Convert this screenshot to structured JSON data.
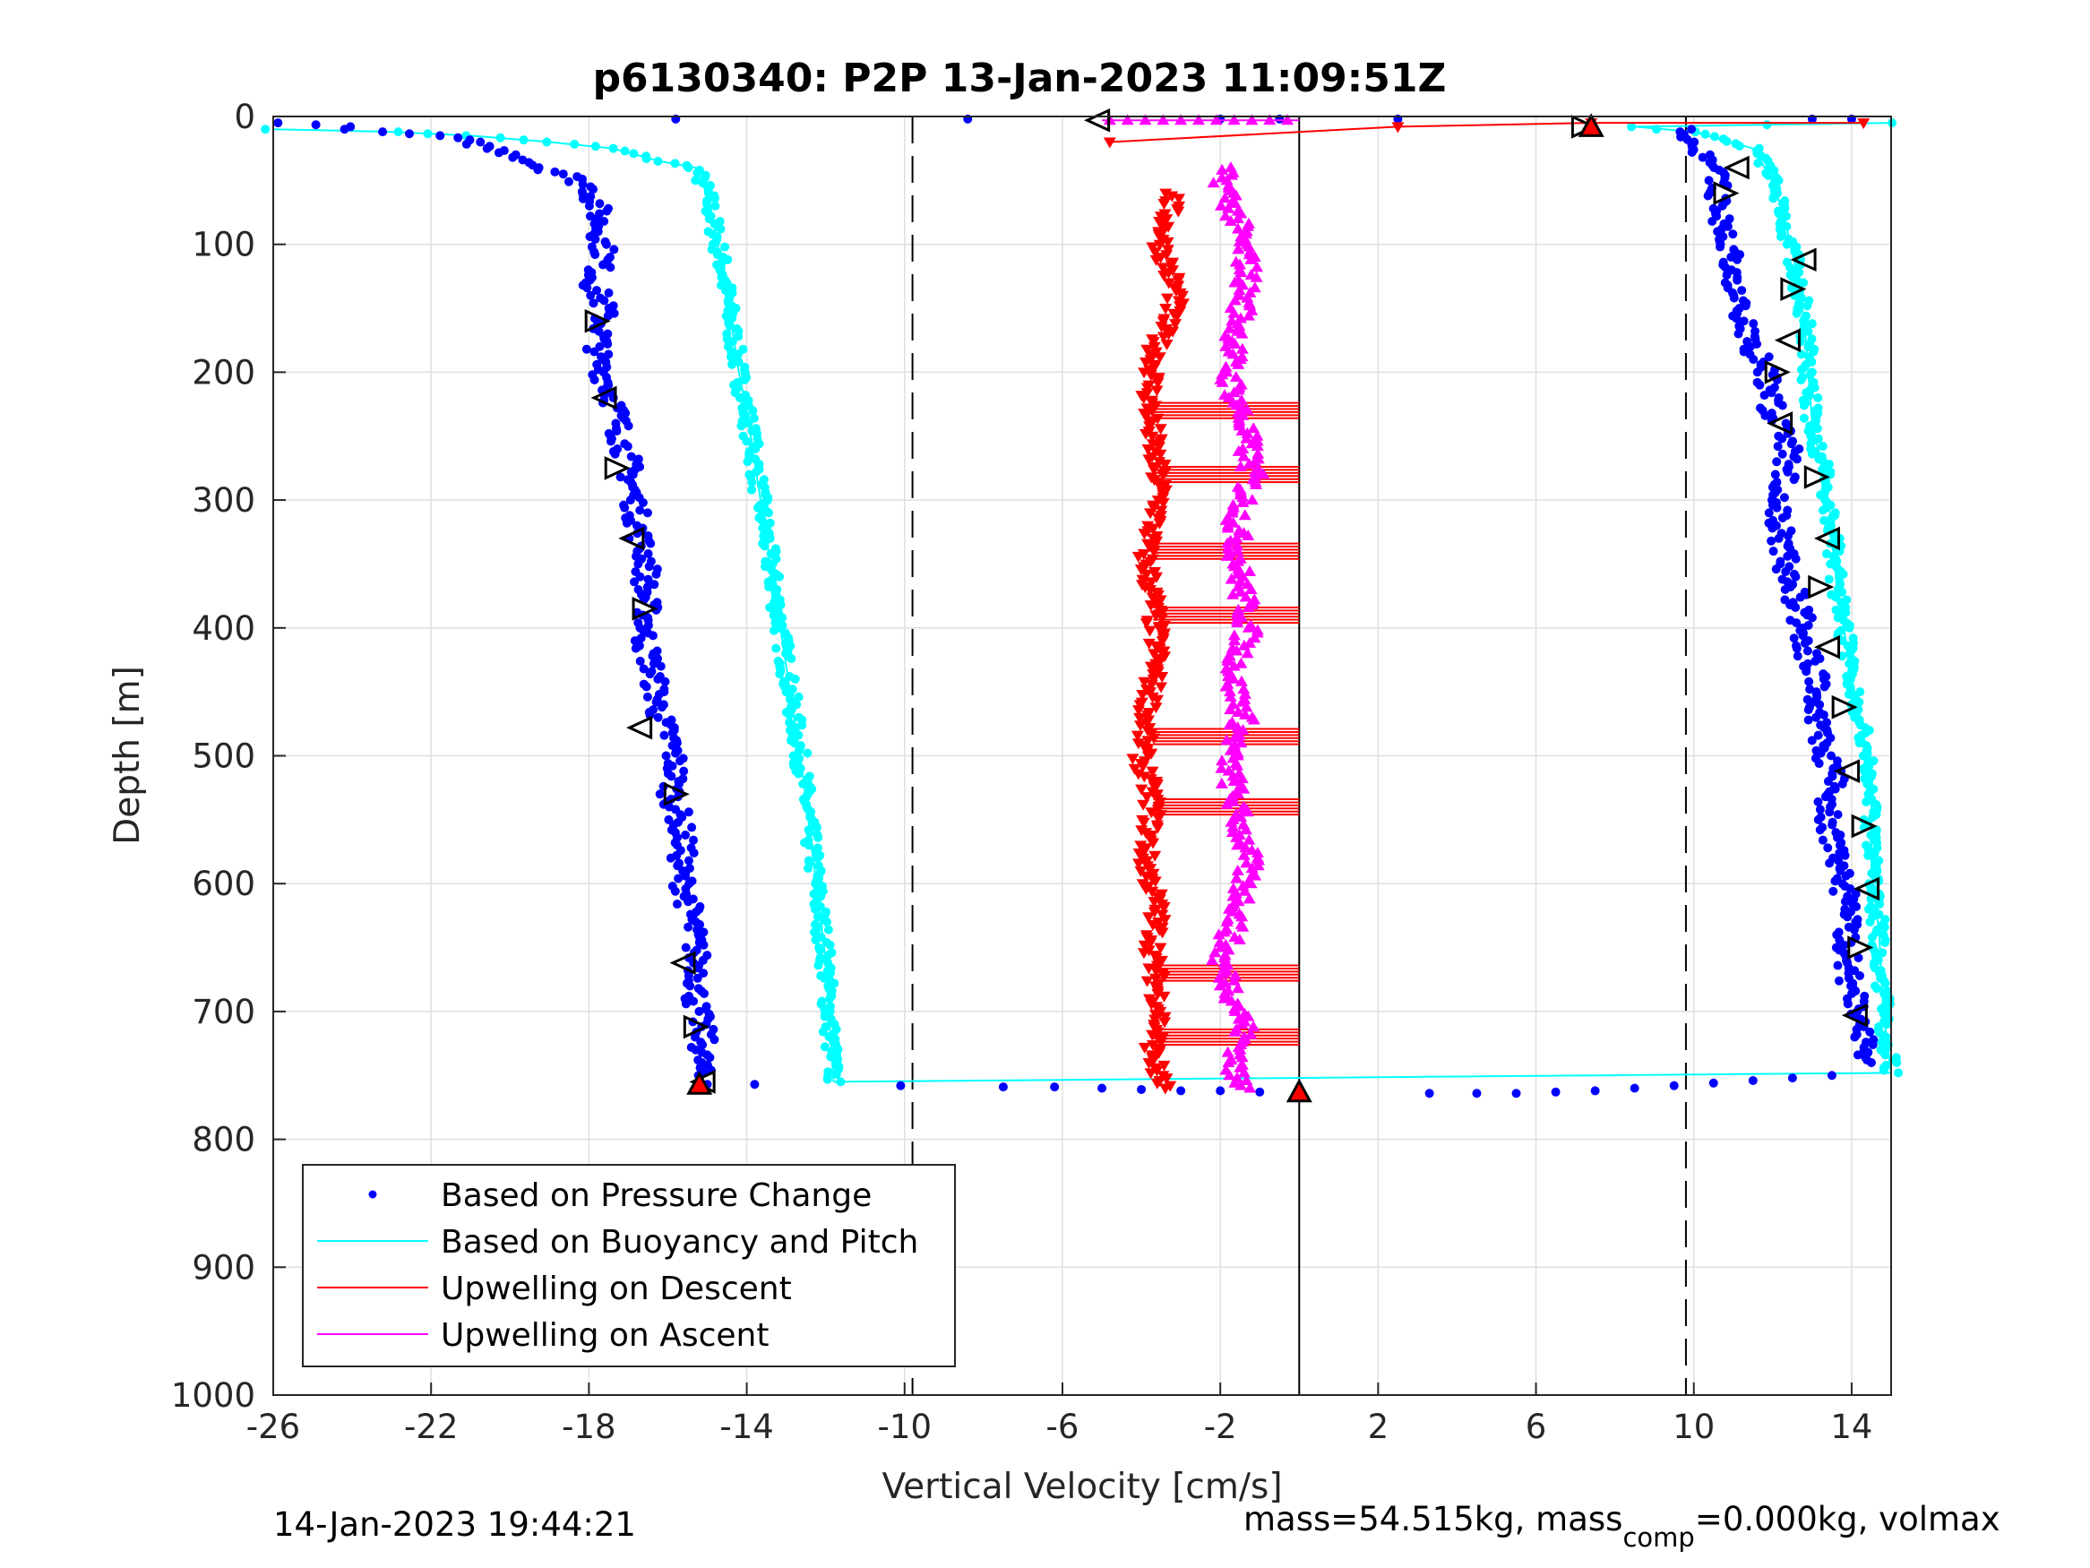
{
  "chart_data": {
    "type": "scatter",
    "title": "p6130340: P2P 13-Jan-2023 11:09:51Z",
    "xlabel": "Vertical Velocity [cm/s]",
    "ylabel": "Depth [m]",
    "xlim": [
      -26,
      15
    ],
    "ylim": [
      0,
      1000
    ],
    "y_reversed": true,
    "grid": true,
    "x_ticks": [
      -26,
      -22,
      -18,
      -14,
      -10,
      -6,
      -2,
      2,
      6,
      10,
      14
    ],
    "y_ticks": [
      0,
      100,
      200,
      300,
      400,
      500,
      600,
      700,
      800,
      900,
      1000
    ],
    "reference_lines": [
      {
        "x": -9.8,
        "style": "dashed"
      },
      {
        "x": 0,
        "style": "solid"
      },
      {
        "x": 9.8,
        "style": "dashed"
      }
    ],
    "legend": {
      "placement": "bottom-left",
      "entries": [
        {
          "label": "Based on Pressure Change",
          "color": "#0000ff",
          "style": "dot"
        },
        {
          "label": "Based on Buoyancy and Pitch",
          "color": "#00ffff",
          "style": "line"
        },
        {
          "label": "Upwelling on Descent",
          "color": "#ff0000",
          "style": "line"
        },
        {
          "label": "Upwelling on Ascent",
          "color": "#ff00ff",
          "style": "line"
        }
      ]
    },
    "series": [
      {
        "name": "Based on Pressure Change",
        "color": "#0000ff",
        "marker": "dot",
        "descent_x": [
          -25.6,
          -24.3,
          -23.5,
          -21.8,
          -21.0,
          -20.5,
          -19.8,
          -19.2,
          -18.6,
          -18.0,
          -17.8,
          -17.7,
          -17.6,
          -17.9,
          -17.6,
          -17.7,
          -17.8,
          -17.5,
          -17.3,
          -17.2,
          -17.0,
          -16.9,
          -16.8,
          -16.7,
          -16.5,
          -16.6,
          -16.5,
          -16.6,
          -16.4,
          -16.3,
          -16.2,
          -15.9,
          -15.8,
          -15.9,
          -15.7,
          -15.6,
          -15.7,
          -15.5,
          -15.4,
          -15.3,
          -15.2,
          -15.3,
          -15.1,
          -15.2
        ],
        "descent_y": [
          5,
          8,
          12,
          15,
          20,
          25,
          30,
          40,
          45,
          55,
          70,
          90,
          110,
          130,
          150,
          170,
          190,
          210,
          230,
          250,
          270,
          290,
          310,
          330,
          350,
          370,
          390,
          410,
          430,
          450,
          470,
          490,
          510,
          530,
          550,
          570,
          590,
          610,
          630,
          650,
          670,
          690,
          720,
          750
        ],
        "bottom_x": [
          -15.0,
          -13.8,
          -10.1,
          -7.5,
          -6.2,
          -5.0,
          -4.0,
          -3.0,
          -2.0,
          -1.0,
          0.0,
          3.3,
          4.5,
          5.5,
          6.5,
          7.5,
          8.5,
          9.5,
          10.5,
          11.5,
          12.5,
          13.5
        ],
        "bottom_y": [
          757,
          757,
          758,
          759,
          759,
          760,
          761,
          762,
          762,
          763,
          763,
          764,
          764,
          764,
          763,
          762,
          760,
          758,
          756,
          754,
          752,
          750
        ],
        "ascent_x": [
          14.5,
          14.3,
          14.2,
          14.0,
          13.9,
          13.8,
          14.0,
          13.7,
          13.6,
          13.5,
          13.4,
          13.6,
          13.3,
          13.2,
          13.0,
          13.1,
          12.9,
          12.8,
          12.6,
          12.4,
          12.3,
          12.2,
          12.1,
          12.3,
          12.4,
          12.1,
          11.9,
          11.8,
          11.5,
          11.3,
          11.0,
          10.7,
          10.6,
          10.2,
          9.8
        ],
        "ascent_y": [
          740,
          720,
          700,
          680,
          660,
          640,
          620,
          600,
          580,
          560,
          540,
          520,
          500,
          480,
          460,
          440,
          420,
          400,
          380,
          360,
          340,
          320,
          300,
          280,
          260,
          240,
          220,
          200,
          180,
          160,
          120,
          80,
          50,
          30,
          10
        ],
        "surface_x": [
          -8.4,
          -15.8,
          -2.0,
          -0.5,
          2.5,
          13.0,
          14.0
        ],
        "surface_y": [
          2,
          2,
          2,
          2,
          2,
          2,
          2
        ]
      },
      {
        "name": "Based on Buoyancy and Pitch",
        "color": "#00ffff",
        "marker": "line",
        "descent_x": [
          -26.0,
          -23.0,
          -21.0,
          -19.0,
          -17.4,
          -16.2,
          -15.3,
          -15.0,
          -14.8,
          -14.6,
          -14.4,
          -14.2,
          -14.0,
          -13.8,
          -13.6,
          -13.4,
          -13.2,
          -13.0,
          -12.8,
          -12.6,
          -12.4,
          -12.2,
          -12.0,
          -11.9,
          -11.8
        ],
        "descent_y": [
          10,
          12,
          15,
          20,
          25,
          35,
          40,
          60,
          90,
          120,
          160,
          200,
          230,
          270,
          310,
          350,
          390,
          430,
          470,
          510,
          560,
          610,
          660,
          710,
          755
        ],
        "ascent_x": [
          15.0,
          14.8,
          14.7,
          14.5,
          14.5,
          14.3,
          14.0,
          13.8,
          13.6,
          13.5,
          13.3,
          13.0,
          12.9,
          12.8,
          12.6,
          12.3,
          12.0,
          11.5,
          10.0,
          8.5,
          15.0
        ],
        "ascent_y": [
          748,
          700,
          640,
          590,
          540,
          480,
          440,
          400,
          360,
          320,
          280,
          240,
          200,
          160,
          120,
          80,
          50,
          25,
          12,
          8,
          5
        ]
      },
      {
        "name": "Upwelling on Descent",
        "color": "#ff0000",
        "marker": "down-triangle",
        "x": [
          -4.8,
          2.5,
          7.4,
          14.3,
          -3.2,
          -3.5,
          -3.1,
          -3.6,
          -3.8,
          -3.7,
          -3.5,
          -3.9,
          -3.7,
          -3.6,
          -3.8,
          -4.0,
          -3.7,
          -3.9,
          -3.6,
          -3.7,
          -3.5,
          -3.7,
          -3.6,
          -3.4
        ],
        "y": [
          20,
          8,
          5,
          5,
          60,
          100,
          140,
          180,
          220,
          260,
          300,
          340,
          380,
          420,
          460,
          500,
          540,
          580,
          620,
          660,
          700,
          730,
          750,
          760
        ],
        "band_depths": [
          230,
          280,
          340,
          390,
          485,
          540,
          670,
          720
        ],
        "band_x_range": [
          -3.7,
          0.0
        ]
      },
      {
        "name": "Upwelling on Ascent",
        "color": "#ff00ff",
        "marker": "up-triangle",
        "x": [
          -5.0,
          -2.0,
          -1.6,
          -1.3,
          -1.5,
          -1.8,
          -1.4,
          -1.2,
          -1.6,
          -1.5,
          -1.3,
          -1.7,
          -1.4,
          -1.8,
          -1.6,
          -1.3,
          -1.5,
          -2.0,
          -1.6,
          -1.4,
          -1.5,
          -1.7,
          -1.2
        ],
        "y": [
          3,
          40,
          80,
          120,
          160,
          200,
          240,
          280,
          320,
          360,
          400,
          440,
          470,
          500,
          540,
          580,
          620,
          660,
          690,
          710,
          730,
          750,
          760
        ]
      }
    ],
    "annotation_markers": {
      "left_triangles": [
        [
          -5.1,
          3
        ],
        [
          -17.8,
          160
        ],
        [
          -17.6,
          220
        ],
        [
          -17.3,
          275
        ],
        [
          -16.9,
          330
        ],
        [
          -16.6,
          385
        ],
        [
          -16.7,
          478
        ],
        [
          -15.8,
          530
        ],
        [
          -15.6,
          662
        ],
        [
          -15.3,
          712
        ],
        [
          -15.1,
          755
        ],
        [
          7.2,
          8
        ],
        [
          11.1,
          40
        ],
        [
          10.8,
          60
        ],
        [
          12.8,
          112
        ],
        [
          12.5,
          135
        ],
        [
          12.4,
          175
        ],
        [
          12.1,
          200
        ],
        [
          12.2,
          240
        ],
        [
          13.1,
          282
        ],
        [
          13.4,
          330
        ],
        [
          13.2,
          368
        ],
        [
          13.4,
          415
        ],
        [
          13.8,
          462
        ],
        [
          13.9,
          512
        ],
        [
          14.3,
          555
        ],
        [
          14.4,
          604
        ],
        [
          14.2,
          650
        ],
        [
          14.1,
          703
        ]
      ],
      "end_markers": [
        [
          -15.2,
          757
        ],
        [
          0.0,
          763
        ],
        [
          7.4,
          8
        ]
      ]
    }
  },
  "footer": {
    "timestamp": "14-Jan-2023 19:44:21",
    "mass_text": "mass=54.515kg, mass",
    "mass_sub": "comp",
    "mass_tail": "=0.000kg, volmax"
  }
}
